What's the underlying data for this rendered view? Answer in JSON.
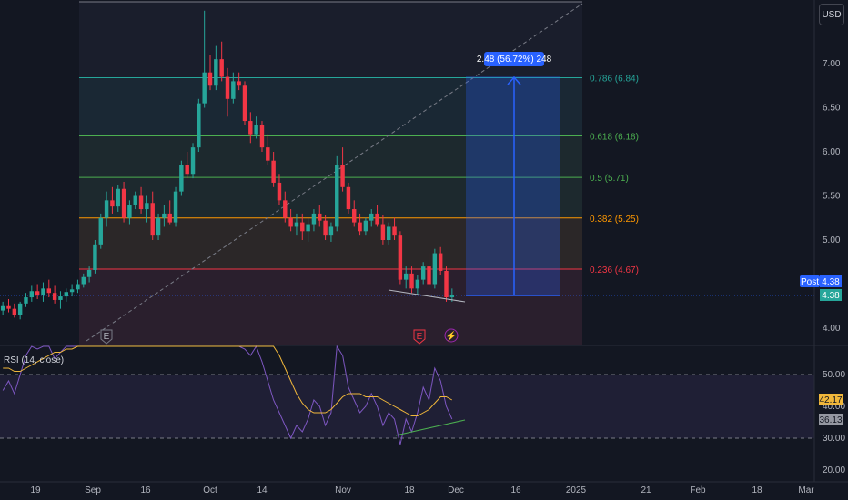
{
  "currency_button": "USD",
  "chart_data": {
    "type": "candlestick",
    "price_axis": {
      "ticks": [
        "7.00",
        "6.50",
        "6.00",
        "5.50",
        "5.00",
        "4.50",
        "4.00"
      ],
      "range": [
        3.8,
        7.6
      ]
    },
    "time_axis": {
      "ticks": [
        "19",
        "Sep",
        "16",
        "Oct",
        "14",
        "Nov",
        "18",
        "Dec",
        "16",
        "2025",
        "21",
        "Feb",
        "18",
        "Mar"
      ]
    },
    "fibonacci": [
      {
        "label": "0.786 (6.84)",
        "price": 6.84,
        "color": "#26a69a"
      },
      {
        "label": "0.618 (6.18)",
        "price": 6.18,
        "color": "#4caf50"
      },
      {
        "label": "0.5 (5.71)",
        "price": 5.71,
        "color": "#4caf50"
      },
      {
        "label": "0.382 (5.25)",
        "price": 5.25,
        "color": "#ff9800"
      },
      {
        "label": "0.236 (4.67)",
        "price": 4.67,
        "color": "#f23645"
      }
    ],
    "measure_label": "2.48 (56.72%) 248",
    "last_price": {
      "label": "Post",
      "value": "4.38",
      "close": "4.38"
    },
    "event_markers": [
      "E",
      "E",
      "⚡"
    ],
    "rsi": {
      "title": "RSI (14, close)",
      "ticks": [
        "50.00",
        "40.00",
        "30.00",
        "20.00"
      ],
      "value_ma": "42.17",
      "value_rsi": "36.13"
    },
    "candles": [
      [
        4.2,
        4.3,
        4.15,
        4.25
      ],
      [
        4.25,
        4.33,
        4.18,
        4.22
      ],
      [
        4.22,
        4.28,
        4.12,
        4.15
      ],
      [
        4.15,
        4.3,
        4.1,
        4.28
      ],
      [
        4.28,
        4.4,
        4.24,
        4.35
      ],
      [
        4.35,
        4.48,
        4.3,
        4.42
      ],
      [
        4.42,
        4.5,
        4.33,
        4.38
      ],
      [
        4.38,
        4.52,
        4.3,
        4.45
      ],
      [
        4.45,
        4.55,
        4.35,
        4.4
      ],
      [
        4.4,
        4.48,
        4.28,
        4.32
      ],
      [
        4.32,
        4.42,
        4.22,
        4.36
      ],
      [
        4.36,
        4.45,
        4.3,
        4.41
      ],
      [
        4.41,
        4.5,
        4.36,
        4.44
      ],
      [
        4.44,
        4.55,
        4.4,
        4.5
      ],
      [
        4.5,
        4.62,
        4.46,
        4.58
      ],
      [
        4.58,
        4.7,
        4.52,
        4.66
      ],
      [
        4.66,
        5.0,
        4.62,
        4.95
      ],
      [
        4.95,
        5.3,
        4.9,
        5.25
      ],
      [
        5.25,
        5.55,
        5.15,
        5.45
      ],
      [
        5.45,
        5.6,
        5.3,
        5.38
      ],
      [
        5.38,
        5.62,
        5.32,
        5.58
      ],
      [
        5.58,
        5.66,
        5.2,
        5.25
      ],
      [
        5.25,
        5.45,
        5.18,
        5.4
      ],
      [
        5.4,
        5.55,
        5.35,
        5.5
      ],
      [
        5.5,
        5.6,
        5.3,
        5.35
      ],
      [
        5.35,
        5.5,
        5.2,
        5.42
      ],
      [
        5.42,
        5.55,
        5.0,
        5.05
      ],
      [
        5.05,
        5.3,
        5.0,
        5.25
      ],
      [
        5.25,
        5.4,
        5.15,
        5.3
      ],
      [
        5.3,
        5.45,
        5.18,
        5.2
      ],
      [
        5.2,
        5.6,
        5.15,
        5.55
      ],
      [
        5.55,
        5.9,
        5.5,
        5.85
      ],
      [
        5.85,
        6.0,
        5.7,
        5.75
      ],
      [
        5.75,
        6.1,
        5.7,
        6.05
      ],
      [
        6.05,
        6.6,
        6.0,
        6.55
      ],
      [
        6.55,
        7.6,
        6.5,
        6.9
      ],
      [
        6.9,
        7.1,
        6.7,
        6.75
      ],
      [
        6.75,
        7.2,
        6.7,
        7.05
      ],
      [
        7.05,
        7.25,
        6.8,
        6.85
      ],
      [
        6.85,
        6.95,
        6.4,
        6.6
      ],
      [
        6.6,
        6.9,
        6.55,
        6.8
      ],
      [
        6.8,
        6.9,
        6.7,
        6.75
      ],
      [
        6.75,
        6.8,
        6.3,
        6.35
      ],
      [
        6.35,
        6.45,
        6.1,
        6.2
      ],
      [
        6.2,
        6.4,
        6.15,
        6.3
      ],
      [
        6.3,
        6.35,
        6.0,
        6.05
      ],
      [
        6.05,
        6.2,
        5.85,
        5.9
      ],
      [
        5.9,
        6.0,
        5.6,
        5.65
      ],
      [
        5.65,
        5.75,
        5.4,
        5.45
      ],
      [
        5.45,
        5.55,
        5.2,
        5.25
      ],
      [
        5.25,
        5.35,
        5.1,
        5.15
      ],
      [
        5.15,
        5.3,
        5.05,
        5.2
      ],
      [
        5.2,
        5.3,
        5.0,
        5.1
      ],
      [
        5.1,
        5.25,
        4.98,
        5.18
      ],
      [
        5.18,
        5.35,
        5.1,
        5.3
      ],
      [
        5.3,
        5.4,
        5.15,
        5.22
      ],
      [
        5.22,
        5.28,
        5.0,
        5.05
      ],
      [
        5.05,
        5.2,
        4.98,
        5.15
      ],
      [
        5.15,
        5.95,
        5.1,
        5.85
      ],
      [
        5.85,
        6.05,
        5.55,
        5.6
      ],
      [
        5.6,
        5.65,
        5.3,
        5.35
      ],
      [
        5.35,
        5.45,
        5.15,
        5.2
      ],
      [
        5.2,
        5.3,
        5.05,
        5.1
      ],
      [
        5.1,
        5.25,
        5.05,
        5.22
      ],
      [
        5.22,
        5.35,
        5.15,
        5.3
      ],
      [
        5.3,
        5.4,
        5.15,
        5.18
      ],
      [
        5.18,
        5.28,
        4.95,
        5.0
      ],
      [
        5.0,
        5.2,
        4.95,
        5.15
      ],
      [
        5.15,
        5.25,
        5.0,
        5.05
      ],
      [
        5.05,
        5.1,
        4.5,
        4.55
      ],
      [
        4.55,
        4.7,
        4.45,
        4.62
      ],
      [
        4.62,
        4.7,
        4.4,
        4.45
      ],
      [
        4.45,
        4.6,
        4.38,
        4.55
      ],
      [
        4.55,
        4.75,
        4.5,
        4.7
      ],
      [
        4.7,
        4.85,
        4.45,
        4.5
      ],
      [
        4.5,
        4.9,
        4.45,
        4.85
      ],
      [
        4.85,
        4.92,
        4.6,
        4.65
      ],
      [
        4.65,
        4.7,
        4.3,
        4.35
      ],
      [
        4.35,
        4.45,
        4.3,
        4.38
      ]
    ],
    "rsi_values": [
      45,
      48,
      44,
      50,
      56,
      60,
      58,
      62,
      60,
      55,
      57,
      60,
      62,
      64,
      66,
      70,
      78,
      84,
      86,
      80,
      82,
      70,
      72,
      76,
      70,
      72,
      60,
      66,
      68,
      64,
      72,
      78,
      74,
      80,
      86,
      92,
      84,
      88,
      80,
      66,
      70,
      68,
      58,
      56,
      60,
      54,
      48,
      42,
      38,
      34,
      30,
      34,
      32,
      36,
      42,
      40,
      34,
      38,
      62,
      56,
      46,
      42,
      38,
      40,
      44,
      40,
      34,
      38,
      36,
      28,
      36,
      32,
      38,
      46,
      42,
      52,
      48,
      40,
      36
    ],
    "rsi_ma_values": [
      52,
      52,
      51,
      51,
      52,
      53,
      54,
      55,
      56,
      57,
      57,
      58,
      58,
      59,
      60,
      61,
      63,
      66,
      69,
      71,
      72,
      73,
      73,
      74,
      74,
      73,
      72,
      71,
      70,
      69,
      69,
      70,
      71,
      72,
      74,
      76,
      77,
      78,
      79,
      78,
      77,
      76,
      74,
      72,
      70,
      67,
      64,
      60,
      56,
      52,
      48,
      44,
      41,
      39,
      38,
      38,
      38,
      39,
      41,
      43,
      44,
      44,
      44,
      43,
      43,
      43,
      42,
      41,
      40,
      39,
      38,
      37,
      37,
      38,
      39,
      41,
      43,
      43,
      42
    ]
  }
}
